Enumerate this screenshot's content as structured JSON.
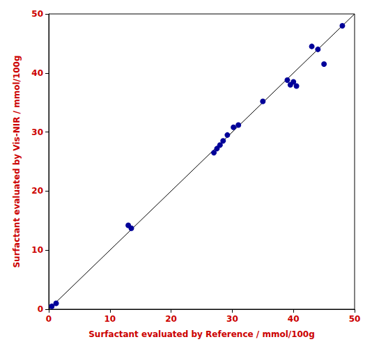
{
  "chart_data": {
    "type": "scatter",
    "xlabel": "Surfactant evaluated by Reference / mmol/100g",
    "ylabel": "Surfactant evaluated by Vis-NIR / mmol/100g",
    "series": [
      {
        "type": "scatter",
        "color": "#000099",
        "marker": "circle",
        "x": [
          0.5,
          1.2,
          13.0,
          13.5,
          27.0,
          27.5,
          28.0,
          28.5,
          29.2,
          30.2,
          31.0,
          35.0,
          39.0,
          39.5,
          40.0,
          40.5,
          43.0,
          44.0,
          45.0,
          48.0
        ],
        "values": [
          0.5,
          1.0,
          14.2,
          13.7,
          26.5,
          27.2,
          27.8,
          28.5,
          29.5,
          30.8,
          31.2,
          35.2,
          38.8,
          38.0,
          38.5,
          37.8,
          44.5,
          44.0,
          41.5,
          48.0
        ]
      },
      {
        "type": "line",
        "color": "black",
        "line_style": "solid",
        "x": [
          0,
          50
        ],
        "values": [
          0,
          50
        ]
      }
    ],
    "xlim": [
      0,
      50
    ],
    "ylim": [
      0,
      50
    ],
    "xticks": [
      0,
      10,
      20,
      30,
      40,
      50
    ],
    "yticks": [
      0,
      10,
      20,
      30,
      40,
      50
    ],
    "grid": false
  }
}
